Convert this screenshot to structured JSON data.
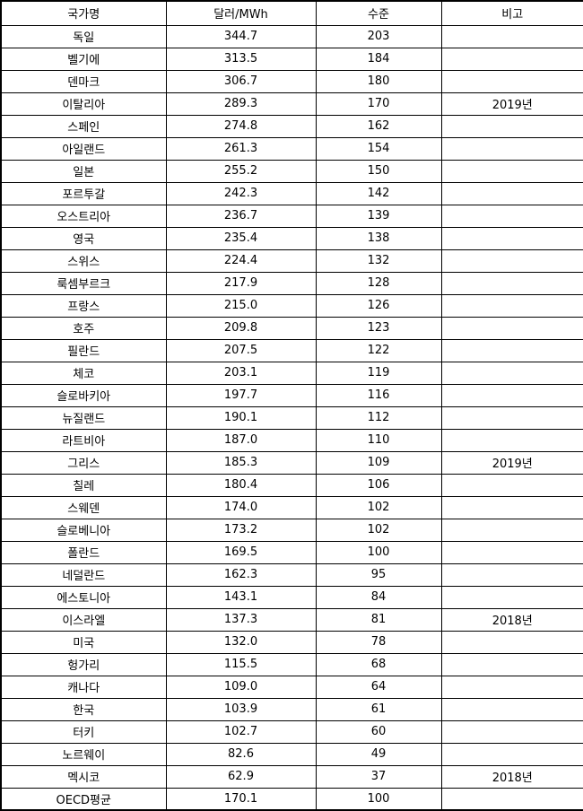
{
  "table": {
    "columns": [
      "국가명",
      "달러/MWh",
      "수준",
      "비고"
    ],
    "rows": [
      {
        "country": "독일",
        "usd_per_mwh": "344.7",
        "level": "203",
        "note": ""
      },
      {
        "country": "벨기에",
        "usd_per_mwh": "313.5",
        "level": "184",
        "note": ""
      },
      {
        "country": "덴마크",
        "usd_per_mwh": "306.7",
        "level": "180",
        "note": ""
      },
      {
        "country": "이탈리아",
        "usd_per_mwh": "289.3",
        "level": "170",
        "note": "2019년"
      },
      {
        "country": "스페인",
        "usd_per_mwh": "274.8",
        "level": "162",
        "note": ""
      },
      {
        "country": "아일랜드",
        "usd_per_mwh": "261.3",
        "level": "154",
        "note": ""
      },
      {
        "country": "일본",
        "usd_per_mwh": "255.2",
        "level": "150",
        "note": ""
      },
      {
        "country": "포르투갈",
        "usd_per_mwh": "242.3",
        "level": "142",
        "note": ""
      },
      {
        "country": "오스트리아",
        "usd_per_mwh": "236.7",
        "level": "139",
        "note": ""
      },
      {
        "country": "영국",
        "usd_per_mwh": "235.4",
        "level": "138",
        "note": ""
      },
      {
        "country": "스위스",
        "usd_per_mwh": "224.4",
        "level": "132",
        "note": ""
      },
      {
        "country": "룩셈부르크",
        "usd_per_mwh": "217.9",
        "level": "128",
        "note": ""
      },
      {
        "country": "프랑스",
        "usd_per_mwh": "215.0",
        "level": "126",
        "note": ""
      },
      {
        "country": "호주",
        "usd_per_mwh": "209.8",
        "level": "123",
        "note": ""
      },
      {
        "country": "필란드",
        "usd_per_mwh": "207.5",
        "level": "122",
        "note": ""
      },
      {
        "country": "체코",
        "usd_per_mwh": "203.1",
        "level": "119",
        "note": ""
      },
      {
        "country": "슬로바키아",
        "usd_per_mwh": "197.7",
        "level": "116",
        "note": ""
      },
      {
        "country": "뉴질랜드",
        "usd_per_mwh": "190.1",
        "level": "112",
        "note": ""
      },
      {
        "country": "라트비아",
        "usd_per_mwh": "187.0",
        "level": "110",
        "note": ""
      },
      {
        "country": "그리스",
        "usd_per_mwh": "185.3",
        "level": "109",
        "note": "2019년"
      },
      {
        "country": "칠레",
        "usd_per_mwh": "180.4",
        "level": "106",
        "note": ""
      },
      {
        "country": "스웨덴",
        "usd_per_mwh": "174.0",
        "level": "102",
        "note": ""
      },
      {
        "country": "슬로베니아",
        "usd_per_mwh": "173.2",
        "level": "102",
        "note": ""
      },
      {
        "country": "폴란드",
        "usd_per_mwh": "169.5",
        "level": "100",
        "note": ""
      },
      {
        "country": "네덜란드",
        "usd_per_mwh": "162.3",
        "level": "95",
        "note": ""
      },
      {
        "country": "에스토니아",
        "usd_per_mwh": "143.1",
        "level": "84",
        "note": ""
      },
      {
        "country": "이스라엘",
        "usd_per_mwh": "137.3",
        "level": "81",
        "note": "2018년"
      },
      {
        "country": "미국",
        "usd_per_mwh": "132.0",
        "level": "78",
        "note": ""
      },
      {
        "country": "헝가리",
        "usd_per_mwh": "115.5",
        "level": "68",
        "note": ""
      },
      {
        "country": "캐나다",
        "usd_per_mwh": "109.0",
        "level": "64",
        "note": ""
      },
      {
        "country": "한국",
        "usd_per_mwh": "103.9",
        "level": "61",
        "note": ""
      },
      {
        "country": "터키",
        "usd_per_mwh": "102.7",
        "level": "60",
        "note": ""
      },
      {
        "country": "노르웨이",
        "usd_per_mwh": "82.6",
        "level": "49",
        "note": ""
      },
      {
        "country": "멕시코",
        "usd_per_mwh": "62.9",
        "level": "37",
        "note": "2018년"
      },
      {
        "country": "OECD평균",
        "usd_per_mwh": "170.1",
        "level": "100",
        "note": ""
      }
    ]
  },
  "colors": {
    "border": "#000000",
    "background": "#ffffff",
    "text": "#000000"
  }
}
